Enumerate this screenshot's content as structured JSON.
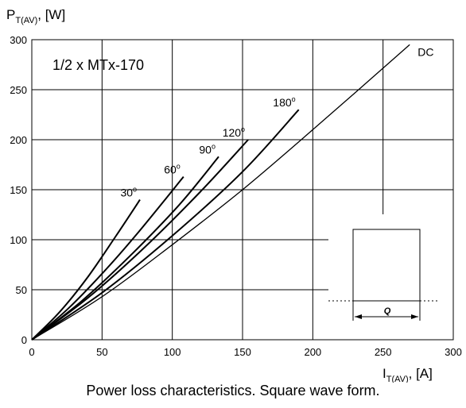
{
  "chart_data": {
    "type": "line",
    "ylabel": {
      "main": "P",
      "sub": "T(AV)",
      "unit": ", [W]"
    },
    "xlabel": {
      "main": "I",
      "sub": "T(AV)",
      "unit": ", [A]"
    },
    "xlim": [
      0,
      300
    ],
    "ylim": [
      0,
      300
    ],
    "xticks": [
      0,
      50,
      100,
      150,
      200,
      250,
      300
    ],
    "yticks": [
      0,
      50,
      100,
      150,
      200,
      250,
      300
    ],
    "grid": true,
    "annotation": "1/2 x MTx-170",
    "caption": "Power loss characteristics. Square wave form.",
    "inset": {
      "symbol": "Q"
    },
    "series": [
      {
        "name": "30",
        "unit": "o",
        "x": [
          0,
          20,
          40,
          60,
          77
        ],
        "y": [
          0,
          28,
          63,
          104,
          140
        ]
      },
      {
        "name": "60",
        "unit": "o",
        "x": [
          0,
          25,
          50,
          75,
          108
        ],
        "y": [
          0,
          30,
          66,
          106,
          163
        ]
      },
      {
        "name": "90",
        "unit": "o",
        "x": [
          0,
          35,
          70,
          105,
          133
        ],
        "y": [
          0,
          38,
          84,
          135,
          183
        ]
      },
      {
        "name": "120",
        "unit": "o",
        "x": [
          0,
          40,
          80,
          120,
          154
        ],
        "y": [
          0,
          42,
          92,
          148,
          200
        ]
      },
      {
        "name": "180",
        "unit": "o",
        "x": [
          0,
          50,
          100,
          150,
          190
        ],
        "y": [
          0,
          47,
          104,
          168,
          230
        ]
      },
      {
        "name": "DC",
        "unit": "",
        "x": [
          0,
          50,
          100,
          150,
          200,
          269
        ],
        "y": [
          0,
          43,
          95,
          150,
          210,
          295
        ]
      }
    ]
  }
}
